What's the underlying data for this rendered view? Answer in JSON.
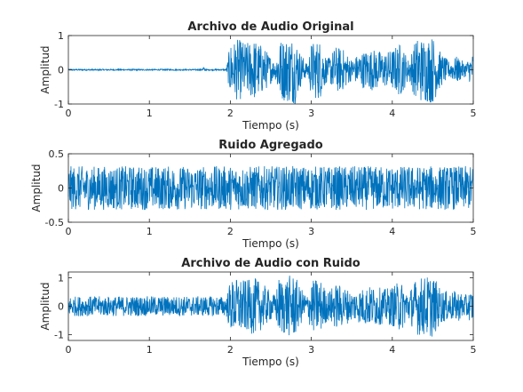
{
  "chart_data": [
    {
      "type": "line",
      "title": "Archivo de Audio Original",
      "xlabel": "Tiempo (s)",
      "ylabel": "Amplitud",
      "xlim": [
        0,
        5
      ],
      "ylim": [
        -1,
        1
      ],
      "xticks": [
        "0",
        "1",
        "2",
        "3",
        "4",
        "5"
      ],
      "yticks": [
        "-1",
        "0",
        "1"
      ],
      "grid": false,
      "series": [
        {
          "color": "#0072BD",
          "x": [
            0,
            0.5,
            1.0,
            1.5,
            1.65,
            1.66,
            1.7,
            1.95,
            2.0,
            2.1,
            2.2,
            2.3,
            2.4,
            2.5,
            2.55,
            2.6,
            2.65,
            2.75,
            2.8,
            2.85,
            2.95,
            3.0,
            3.1,
            3.2,
            3.3,
            3.4,
            3.5,
            3.6,
            3.7,
            3.8,
            3.9,
            4.0,
            4.1,
            4.2,
            4.3,
            4.4,
            4.5,
            4.6,
            4.7,
            4.8,
            4.9,
            5.0
          ],
          "envelope": [
            0.02,
            0.02,
            0.02,
            0.02,
            0.02,
            0.1,
            0.02,
            0.02,
            0.8,
            0.9,
            0.8,
            0.9,
            0.7,
            0.4,
            0.2,
            0.9,
            0.9,
            1.0,
            1.0,
            0.6,
            0.15,
            0.8,
            0.9,
            0.3,
            0.7,
            0.6,
            0.3,
            0.5,
            0.6,
            0.6,
            0.5,
            0.6,
            0.8,
            0.3,
            0.95,
            0.95,
            1.0,
            0.5,
            0.25,
            0.4,
            0.2,
            0.5
          ]
        }
      ]
    },
    {
      "type": "line",
      "title": "Ruido Agregado",
      "xlabel": "Tiempo (s)",
      "ylabel": "Amplitud",
      "xlim": [
        0,
        5
      ],
      "ylim": [
        -0.5,
        0.5
      ],
      "xticks": [
        "0",
        "1",
        "2",
        "3",
        "4",
        "5"
      ],
      "yticks": [
        "-0.5",
        "0",
        "0.5"
      ],
      "grid": false,
      "series": [
        {
          "color": "#0072BD",
          "x": [
            0,
            1,
            2,
            3,
            4,
            5
          ],
          "envelope": [
            0.32,
            0.32,
            0.32,
            0.32,
            0.32,
            0.32
          ]
        }
      ]
    },
    {
      "type": "line",
      "title": "Archivo de Audio con Ruido",
      "xlabel": "Tiempo (s)",
      "ylabel": "Amplitud",
      "xlim": [
        0,
        5
      ],
      "ylim": [
        -1.2,
        1.2
      ],
      "xticks": [
        "0",
        "1",
        "2",
        "3",
        "4",
        "5"
      ],
      "yticks": [
        "-1",
        "0",
        "1"
      ],
      "grid": false,
      "series": [
        {
          "color": "#0072BD",
          "x": [
            0,
            0.5,
            1.0,
            1.5,
            1.95,
            2.0,
            2.1,
            2.2,
            2.3,
            2.4,
            2.5,
            2.55,
            2.6,
            2.65,
            2.75,
            2.8,
            2.85,
            2.95,
            3.0,
            3.1,
            3.2,
            3.3,
            3.4,
            3.5,
            3.6,
            3.7,
            3.8,
            3.9,
            4.0,
            4.1,
            4.2,
            4.3,
            4.4,
            4.5,
            4.6,
            4.7,
            4.8,
            4.9,
            5.0
          ],
          "envelope": [
            0.35,
            0.35,
            0.35,
            0.35,
            0.35,
            0.9,
            1.0,
            0.9,
            1.0,
            0.8,
            0.5,
            0.4,
            1.0,
            1.0,
            1.1,
            1.1,
            0.7,
            0.4,
            0.9,
            1.0,
            0.5,
            0.8,
            0.7,
            0.5,
            0.6,
            0.7,
            0.7,
            0.6,
            0.7,
            0.9,
            0.5,
            1.0,
            1.05,
            1.1,
            0.6,
            0.5,
            0.55,
            0.4,
            0.6
          ]
        }
      ]
    }
  ]
}
